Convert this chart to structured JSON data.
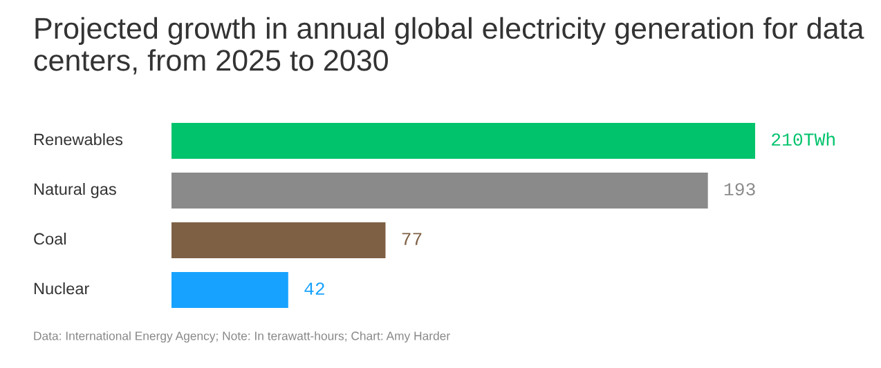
{
  "chart_data": {
    "type": "bar",
    "orientation": "horizontal",
    "title": "Projected growth in annual global electricity generation for data centers, from 2025 to 2030",
    "categories": [
      "Renewables",
      "Natural gas",
      "Coal",
      "Nuclear"
    ],
    "values": [
      210,
      193,
      77,
      42
    ],
    "colors": [
      "#00c36b",
      "#8a8a8a",
      "#7e6045",
      "#17a2ff"
    ],
    "value_labels": [
      "210TWh",
      "193",
      "77",
      "42"
    ],
    "xlim": [
      0,
      210
    ],
    "tick_labels": "y",
    "annotations": [
      "Data: International Energy Agency; Note: In terawatt-hours; Chart: Amy Harder"
    ]
  }
}
